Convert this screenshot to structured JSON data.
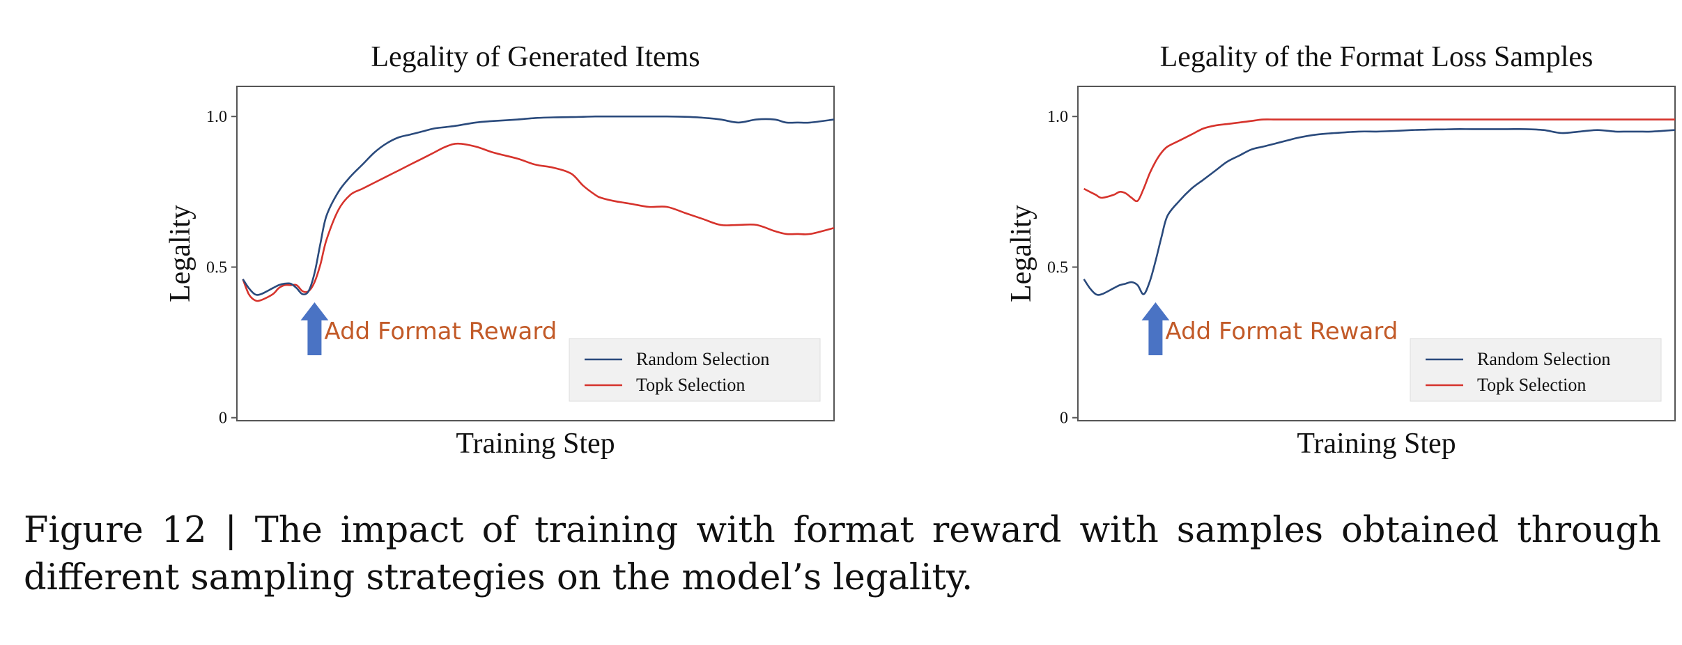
{
  "chart_data": [
    {
      "type": "line",
      "title": "Legality of Generated Items",
      "xlabel": "Training  Step",
      "ylabel": "Legality",
      "yticks": [
        "0",
        "0.5",
        "1.0"
      ],
      "ylim": [
        -0.01,
        1.1
      ],
      "xlim": [
        0,
        100
      ],
      "grid": false,
      "legend": "bottom-right",
      "annotation": "Add Format Reward",
      "annotation_x": 13,
      "x": [
        1,
        2,
        3,
        4,
        6,
        7,
        8,
        9,
        10,
        11,
        12,
        13,
        14,
        15,
        17,
        19,
        21,
        23,
        25,
        27,
        29,
        31,
        33,
        35,
        37,
        40,
        43,
        47,
        50,
        53,
        56,
        58,
        60,
        61,
        63,
        66,
        69,
        72,
        75,
        78,
        81,
        84,
        87,
        90,
        92,
        94,
        96,
        100
      ],
      "series": [
        {
          "name": "Random Selection",
          "color": "#2a4a7c",
          "values": [
            0.46,
            0.43,
            0.41,
            0.41,
            0.43,
            0.44,
            0.445,
            0.445,
            0.43,
            0.41,
            0.42,
            0.48,
            0.58,
            0.67,
            0.75,
            0.8,
            0.84,
            0.88,
            0.91,
            0.93,
            0.94,
            0.95,
            0.96,
            0.965,
            0.97,
            0.98,
            0.985,
            0.99,
            0.995,
            0.997,
            0.998,
            0.999,
            1.0,
            1.0,
            1.0,
            1.0,
            1.0,
            1.0,
            0.999,
            0.996,
            0.99,
            0.98,
            0.99,
            0.99,
            0.98,
            0.98,
            0.98,
            0.99
          ]
        },
        {
          "name": "Topk Selection",
          "color": "#d6332c",
          "values": [
            0.46,
            0.41,
            0.39,
            0.39,
            0.41,
            0.43,
            0.44,
            0.44,
            0.44,
            0.42,
            0.42,
            0.45,
            0.51,
            0.59,
            0.69,
            0.74,
            0.76,
            0.78,
            0.8,
            0.82,
            0.84,
            0.86,
            0.88,
            0.9,
            0.91,
            0.9,
            0.88,
            0.86,
            0.84,
            0.83,
            0.81,
            0.77,
            0.74,
            0.73,
            0.72,
            0.71,
            0.7,
            0.7,
            0.68,
            0.66,
            0.64,
            0.64,
            0.64,
            0.62,
            0.61,
            0.61,
            0.61,
            0.63
          ]
        }
      ]
    },
    {
      "type": "line",
      "title": "Legality of the Format Loss Samples",
      "xlabel": "Training  Step",
      "ylabel": "Legality",
      "yticks": [
        "0",
        "0.5",
        "1.0"
      ],
      "ylim": [
        -0.01,
        1.1
      ],
      "xlim": [
        0,
        100
      ],
      "grid": false,
      "legend": "bottom-right",
      "annotation": "Add Format Reward",
      "annotation_x": 13,
      "x": [
        1,
        2,
        3,
        4,
        6,
        7,
        8,
        9,
        10,
        11,
        12,
        13,
        14,
        15,
        17,
        19,
        21,
        23,
        25,
        27,
        29,
        31,
        33,
        35,
        37,
        40,
        43,
        47,
        50,
        53,
        56,
        58,
        60,
        61,
        63,
        66,
        69,
        72,
        75,
        78,
        81,
        84,
        87,
        90,
        92,
        94,
        96,
        100
      ],
      "series": [
        {
          "name": "Random Selection",
          "color": "#2a4a7c",
          "values": [
            0.46,
            0.43,
            0.41,
            0.41,
            0.43,
            0.44,
            0.445,
            0.45,
            0.44,
            0.41,
            0.45,
            0.52,
            0.6,
            0.67,
            0.72,
            0.76,
            0.79,
            0.82,
            0.85,
            0.87,
            0.89,
            0.9,
            0.91,
            0.92,
            0.93,
            0.94,
            0.945,
            0.95,
            0.95,
            0.952,
            0.955,
            0.956,
            0.957,
            0.957,
            0.958,
            0.958,
            0.958,
            0.958,
            0.958,
            0.955,
            0.945,
            0.95,
            0.955,
            0.95,
            0.95,
            0.95,
            0.95,
            0.955
          ]
        },
        {
          "name": "Topk Selection",
          "color": "#d6332c",
          "values": [
            0.76,
            0.75,
            0.74,
            0.73,
            0.74,
            0.75,
            0.745,
            0.73,
            0.72,
            0.76,
            0.81,
            0.85,
            0.88,
            0.9,
            0.92,
            0.94,
            0.96,
            0.97,
            0.975,
            0.98,
            0.985,
            0.99,
            0.99,
            0.99,
            0.99,
            0.99,
            0.99,
            0.99,
            0.99,
            0.99,
            0.99,
            0.99,
            0.99,
            0.99,
            0.99,
            0.99,
            0.99,
            0.99,
            0.99,
            0.99,
            0.99,
            0.99,
            0.99,
            0.99,
            0.99,
            0.99,
            0.99,
            0.99
          ]
        }
      ]
    }
  ],
  "caption": "Figure 12 | The impact of training with format reward with samples obtained through different sampling strategies on the model’s legality."
}
